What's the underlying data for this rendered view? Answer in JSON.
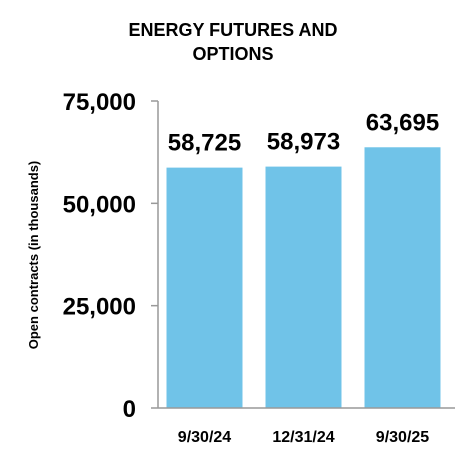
{
  "chart_data": {
    "type": "bar",
    "title_lines": [
      "ENERGY FUTURES AND",
      "OPTIONS"
    ],
    "xlabel": "",
    "ylabel": "Open contracts (in thousands)",
    "categories": [
      "9/30/24",
      "12/31/24",
      "9/30/25"
    ],
    "values": [
      58725,
      58973,
      63695
    ],
    "value_labels": [
      "58,725",
      "58,973",
      "63,695"
    ],
    "ylim": [
      0,
      75000
    ],
    "yticks": [
      0,
      25000,
      50000,
      75000
    ],
    "ytick_labels": [
      "0",
      "25,000",
      "50,000",
      "75,000"
    ],
    "bar_color": "#70C3E8",
    "grid": false,
    "legend": "none"
  }
}
